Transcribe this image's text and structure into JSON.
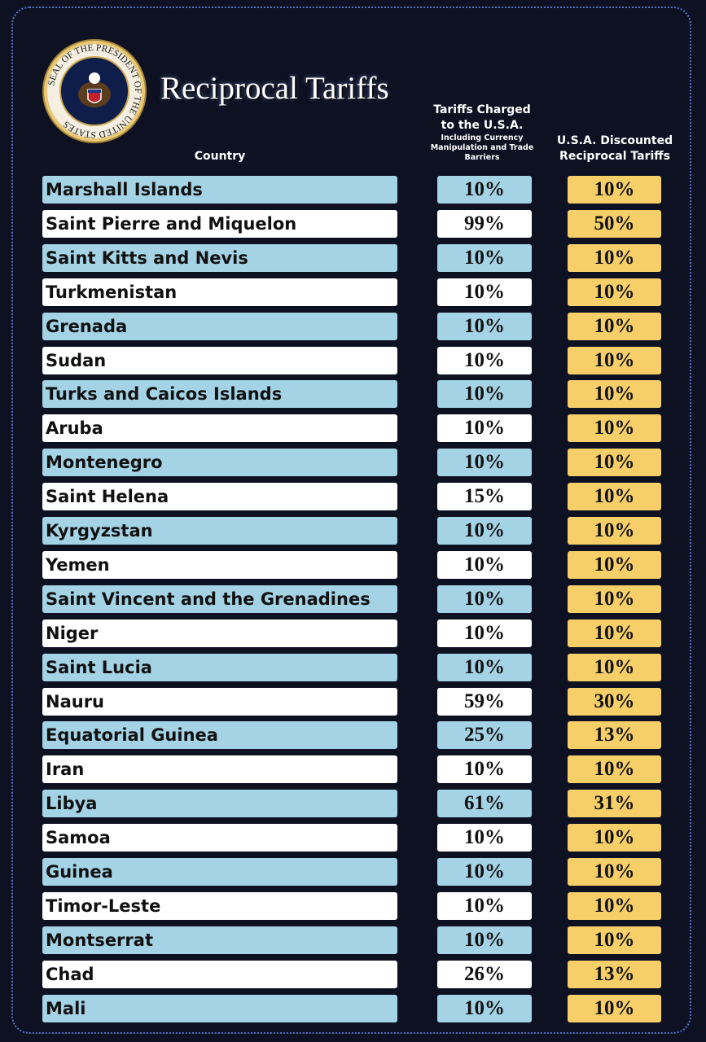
{
  "seal": {
    "text": "SEAL OF THE PRESIDENT OF THE UNITED STATES"
  },
  "header": {
    "title": "Reciprocal Tariffs"
  },
  "table": {
    "columns": {
      "country": "Country",
      "charged": "Tariffs Charged to the U.S.A.",
      "charged_note": "Including Currency Manipulation and Trade Barriers",
      "reciprocal": "U.S.A. Discounted Reciprocal Tariffs"
    },
    "rows": [
      [
        "Marshall Islands",
        "10%",
        "10%"
      ],
      [
        "Saint Pierre and Miquelon",
        "99%",
        "50%"
      ],
      [
        "Saint Kitts and Nevis",
        "10%",
        "10%"
      ],
      [
        "Turkmenistan",
        "10%",
        "10%"
      ],
      [
        "Grenada",
        "10%",
        "10%"
      ],
      [
        "Sudan",
        "10%",
        "10%"
      ],
      [
        "Turks and Caicos Islands",
        "10%",
        "10%"
      ],
      [
        "Aruba",
        "10%",
        "10%"
      ],
      [
        "Montenegro",
        "10%",
        "10%"
      ],
      [
        "Saint Helena",
        "15%",
        "10%"
      ],
      [
        "Kyrgyzstan",
        "10%",
        "10%"
      ],
      [
        "Yemen",
        "10%",
        "10%"
      ],
      [
        "Saint Vincent and the Grenadines",
        "10%",
        "10%"
      ],
      [
        "Niger",
        "10%",
        "10%"
      ],
      [
        "Saint Lucia",
        "10%",
        "10%"
      ],
      [
        "Nauru",
        "59%",
        "30%"
      ],
      [
        "Equatorial Guinea",
        "25%",
        "13%"
      ],
      [
        "Iran",
        "10%",
        "10%"
      ],
      [
        "Libya",
        "61%",
        "31%"
      ],
      [
        "Samoa",
        "10%",
        "10%"
      ],
      [
        "Guinea",
        "10%",
        "10%"
      ],
      [
        "Timor-Leste",
        "10%",
        "10%"
      ],
      [
        "Montserrat",
        "10%",
        "10%"
      ],
      [
        "Chad",
        "26%",
        "13%"
      ],
      [
        "Mali",
        "10%",
        "10%"
      ]
    ]
  }
}
